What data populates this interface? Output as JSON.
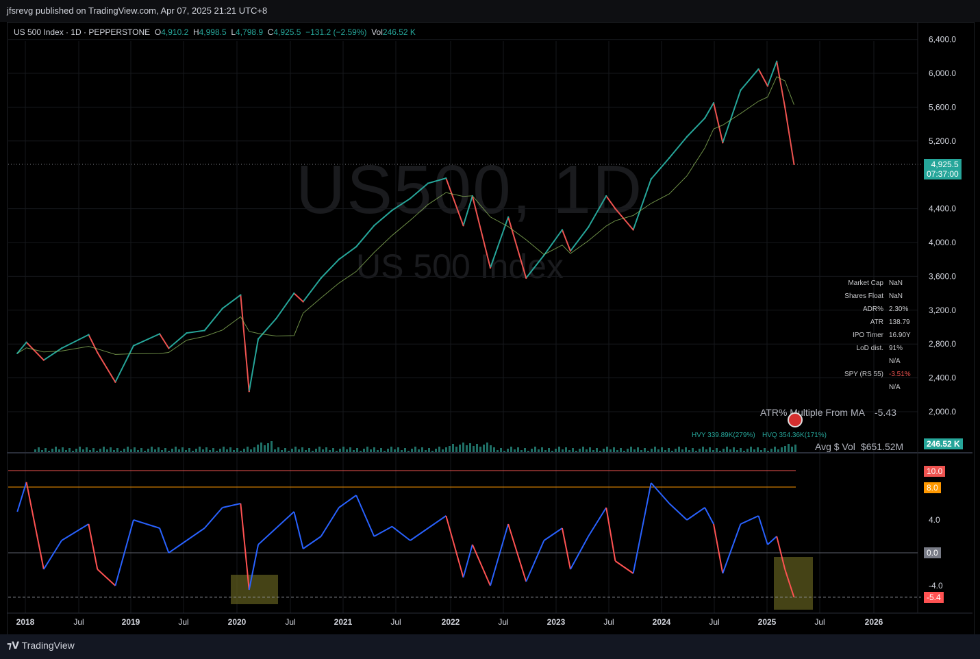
{
  "header": {
    "published": "jfsrevg published on TradingView.com, Apr 07, 2025 21:21 UTC+8"
  },
  "legend": {
    "symbol": "US 500 Index · 1D · PEPPERSTONE",
    "o_label": "O",
    "o": "4,910.2",
    "h_label": "H",
    "h": "4,998.5",
    "l_label": "L",
    "l": "4,798.9",
    "c_label": "C",
    "c": "4,925.5",
    "change": "−131.2 (−2.59%)",
    "vol_label": "Vol",
    "vol": "246.52 K"
  },
  "watermark": {
    "big": "US500, 1D",
    "small": "US 500 Index"
  },
  "stats": {
    "rows": [
      {
        "k": "Market Cap",
        "v": "NaN"
      },
      {
        "k": "Shares Float",
        "v": "NaN"
      },
      {
        "k": "ADR%",
        "v": "2.30%"
      },
      {
        "k": "ATR",
        "v": "138.79"
      },
      {
        "k": "IPO Timer",
        "v": "16.90Y"
      },
      {
        "k": "LoD dist.",
        "v": "91%"
      },
      {
        "k": "",
        "v": "N/A"
      },
      {
        "k": "SPY (RS 55)",
        "v": "-3.51%"
      },
      {
        "k": "",
        "v": "N/A"
      }
    ]
  },
  "indicators": {
    "atr_multiple_label": "ATR% Multiple From MA",
    "atr_multiple_value": "-5.43",
    "avg_vol_label": "Avg $ Vol",
    "avg_vol_value": "$651.52M",
    "hvy": "HVY 339.89K(279%)",
    "hvq": "HVQ 354.36K(171%)"
  },
  "badges": {
    "price": "4,925.5",
    "countdown": "07:37:00",
    "volume": "246.52 K",
    "osc_levels": [
      "10.0",
      "8.0",
      "0.0",
      "-5.4"
    ]
  },
  "footer": {
    "brand": "TradingView"
  },
  "colors": {
    "up": "#26a69a",
    "down": "#ef5350",
    "osc_up": "#2962ff",
    "osc_down": "#ff5252",
    "line_red": "#ef5350",
    "line_orange": "#ff9800",
    "highlight": "#5c5a1e"
  },
  "chart_data": [
    {
      "type": "line",
      "title": "US 500 Index · 1D · PEPPERSTONE",
      "x": [
        "2018-01",
        "2018-02",
        "2018-04",
        "2018-06",
        "2018-09",
        "2018-10",
        "2018-12",
        "2019-02",
        "2019-05",
        "2019-06",
        "2019-08",
        "2019-10",
        "2019-12",
        "2020-02",
        "2020-03",
        "2020-04",
        "2020-06",
        "2020-08",
        "2020-09",
        "2020-11",
        "2021-01",
        "2021-03",
        "2021-05",
        "2021-07",
        "2021-09",
        "2021-11",
        "2022-01",
        "2022-03",
        "2022-04",
        "2022-06",
        "2022-08",
        "2022-10",
        "2022-12",
        "2023-02",
        "2023-03",
        "2023-05",
        "2023-07",
        "2023-08",
        "2023-10",
        "2023-12",
        "2024-02",
        "2024-04",
        "2024-06",
        "2024-07",
        "2024-08",
        "2024-10",
        "2024-12",
        "2025-01",
        "2025-02",
        "2025-03",
        "2025-04"
      ],
      "series": [
        {
          "values": [
            2690,
            2820,
            2610,
            2750,
            2910,
            2700,
            2350,
            2780,
            2920,
            2750,
            2930,
            2960,
            3220,
            3380,
            2240,
            2860,
            3100,
            3400,
            3300,
            3580,
            3800,
            3950,
            4200,
            4380,
            4520,
            4700,
            4760,
            4200,
            4550,
            3700,
            4300,
            3580,
            3850,
            4150,
            3900,
            4180,
            4550,
            4400,
            4150,
            4750,
            5000,
            5250,
            5470,
            5650,
            5180,
            5800,
            6050,
            5850,
            6140,
            5600,
            4925
          ]
        }
      ],
      "yticks": [
        "2,000.0",
        "2,400.0",
        "2,800.0",
        "3,200.0",
        "3,600.0",
        "4,000.0",
        "4,400.0",
        "5,200.0",
        "5,600.0",
        "6,000.0",
        "6,400.0"
      ],
      "ylim": [
        1700,
        6600
      ],
      "xticks": [
        "2018",
        "Jul",
        "2019",
        "Jul",
        "2020",
        "Jul",
        "2021",
        "Jul",
        "2022",
        "Jul",
        "2023",
        "Jul",
        "2024",
        "Jul",
        "2025",
        "Jul",
        "2026"
      ],
      "last_price": "4,925.5"
    },
    {
      "type": "line",
      "title": "",
      "x": [
        "2018-01",
        "2018-02",
        "2018-04",
        "2018-06",
        "2018-09",
        "2018-10",
        "2018-12",
        "2019-02",
        "2019-05",
        "2019-06",
        "2019-08",
        "2019-10",
        "2019-12",
        "2020-02",
        "2020-03",
        "2020-04",
        "2020-06",
        "2020-08",
        "2020-09",
        "2020-11",
        "2021-01",
        "2021-03",
        "2021-05",
        "2021-07",
        "2021-09",
        "2021-11",
        "2022-01",
        "2022-03",
        "2022-04",
        "2022-06",
        "2022-08",
        "2022-10",
        "2022-12",
        "2023-02",
        "2023-03",
        "2023-05",
        "2023-07",
        "2023-08",
        "2023-10",
        "2023-12",
        "2024-02",
        "2024-04",
        "2024-06",
        "2024-07",
        "2024-08",
        "2024-10",
        "2024-12",
        "2025-01",
        "2025-02",
        "2025-03",
        "2025-04"
      ],
      "series": [
        {
          "values": [
            5,
            8.6,
            -2,
            1.5,
            3.5,
            -2,
            -4,
            4,
            3,
            0,
            1.5,
            3,
            5.5,
            6,
            -4.5,
            1,
            3,
            5,
            0.5,
            2,
            5.5,
            7,
            2,
            3.2,
            1.5,
            3,
            4.5,
            -3,
            1,
            -4,
            3.5,
            -3.5,
            1.5,
            3,
            -2,
            2,
            5.5,
            -1,
            -2.5,
            8.5,
            6,
            4,
            5.5,
            3.5,
            -2.5,
            3.5,
            4.5,
            1,
            2,
            -2,
            -5.4
          ]
        }
      ],
      "yticks": [
        "-4.0",
        "0.0",
        "4.0"
      ],
      "ylim": [
        -6.5,
        11.5
      ],
      "reference_lines": [
        10.0,
        8.0,
        0.0
      ]
    }
  ]
}
